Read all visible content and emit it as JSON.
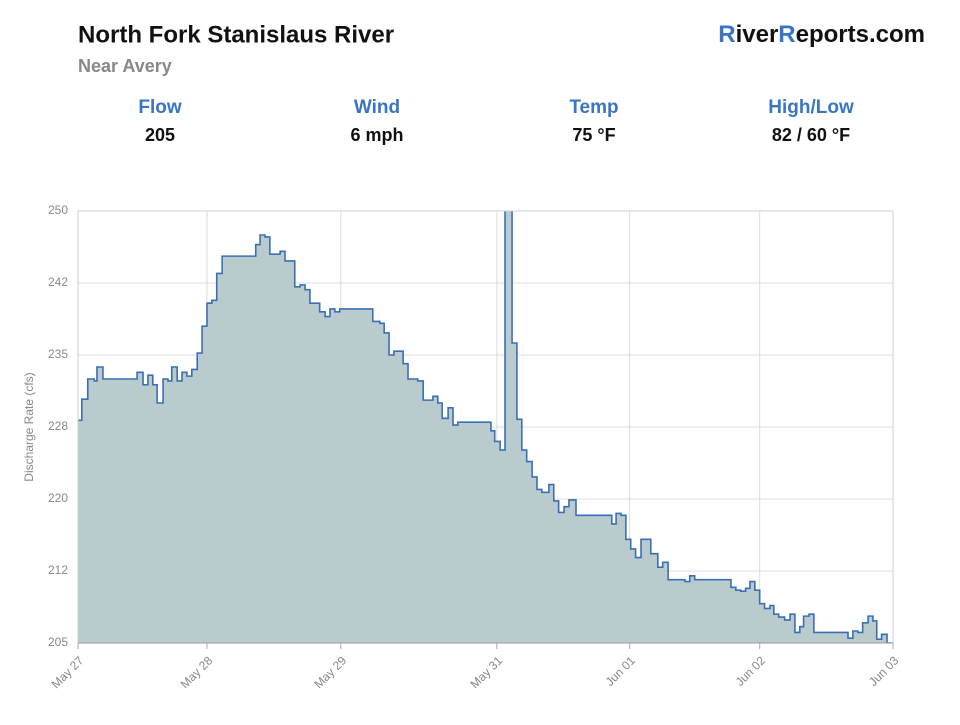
{
  "header": {
    "title": "North Fork Stanislaus River",
    "subtitle": "Near Avery",
    "brand": [
      {
        "text": "R",
        "color": "#3a74c4"
      },
      {
        "text": "iver"
      },
      {
        "text": "R",
        "color": "#3a74c4"
      },
      {
        "text": "eports.com"
      }
    ]
  },
  "stats": [
    {
      "label": "Flow",
      "value": "205"
    },
    {
      "label": "Wind",
      "value": "6 mph"
    },
    {
      "label": "Temp",
      "value": "75 °F"
    },
    {
      "label": "High/Low",
      "value": "82 / 60 °F"
    }
  ],
  "chart_data": {
    "type": "step-area",
    "y_label": "Discharge Rate (cfs)",
    "xlim": [
      0,
      150.4
    ],
    "xticks": [
      {
        "value": 0,
        "label": "May 27"
      },
      {
        "value": 23.8,
        "label": "May 28"
      },
      {
        "value": 48.5,
        "label": "May 29"
      },
      {
        "value": 77.3,
        "label": "May 31"
      },
      {
        "value": 101.8,
        "label": "Jun 01"
      },
      {
        "value": 125.8,
        "label": "Jun 02"
      },
      {
        "value": 150.4,
        "label": "Jun 03"
      }
    ],
    "ylim": [
      205,
      250
    ],
    "yticks": [
      205,
      {
        "value": 212.5,
        "label": "212"
      },
      220,
      {
        "value": 227.5,
        "label": "228"
      },
      235,
      {
        "value": 242.5,
        "label": "242"
      },
      250
    ],
    "grid": true,
    "line_color": "#3a6fb5",
    "fill_color": "#b9cbcc",
    "x": [
      0,
      0.7,
      1.8,
      3.0,
      3.5,
      4.6,
      10.9,
      12.0,
      12.9,
      13.8,
      14.6,
      15.7,
      16.6,
      17.3,
      18.3,
      19.2,
      20.1,
      21.0,
      22.0,
      22.9,
      23.8,
      24.7,
      25.6,
      26.6,
      32.8,
      33.6,
      34.5,
      35.4,
      37.3,
      38.2,
      40.0,
      41.0,
      41.9,
      42.8,
      44.6,
      45.6,
      46.5,
      47.4,
      48.3,
      54.4,
      55.7,
      56.5,
      57.4,
      58.3,
      60.0,
      60.9,
      62.7,
      63.7,
      65.5,
      66.4,
      67.2,
      68.3,
      69.2,
      70.1,
      76.2,
      76.9,
      77.9,
      78.8,
      80.1,
      81.0,
      81.9,
      82.8,
      83.8,
      84.7,
      85.6,
      86.9,
      87.8,
      88.7,
      89.7,
      90.6,
      91.9,
      98.5,
      99.3,
      100.2,
      101.1,
      102.0,
      102.9,
      103.9,
      105.7,
      107.0,
      107.9,
      108.9,
      112.0,
      112.9,
      113.8,
      120.5,
      121.4,
      122.3,
      123.2,
      124.0,
      124.9,
      125.8,
      126.7,
      127.7,
      128.4,
      129.3,
      130.4,
      131.4,
      132.3,
      133.2,
      133.9,
      134.9,
      135.8,
      142.1,
      143.0,
      143.9,
      144.8,
      145.8,
      146.7,
      147.4,
      148.3,
      149.3
    ],
    "values": [
      228.2,
      230.4,
      232.5,
      232.3,
      233.75,
      232.5,
      233.2,
      231.9,
      232.9,
      231.9,
      230,
      232.5,
      232.3,
      233.75,
      232.3,
      233.2,
      232.8,
      233.5,
      235.2,
      238,
      240.4,
      240.7,
      243.5,
      245.3,
      246.5,
      247.5,
      247.3,
      245.5,
      245.8,
      244.8,
      242.1,
      242.3,
      241.8,
      240.4,
      239.5,
      239,
      239.8,
      239.5,
      239.8,
      238.5,
      238.3,
      237.3,
      235,
      235.4,
      234.1,
      232.5,
      232.3,
      230.3,
      230.7,
      230,
      228.4,
      229.5,
      227.7,
      228,
      227.1,
      226,
      225.1,
      251,
      236.25,
      228.3,
      225.1,
      223.9,
      222.3,
      221,
      220.7,
      221.5,
      219.8,
      218.6,
      219.2,
      219.9,
      218.3,
      217.4,
      218.5,
      218.3,
      215.8,
      214.8,
      213.9,
      215.8,
      214.3,
      212.9,
      213.4,
      211.6,
      211.4,
      212,
      211.6,
      210.8,
      210.5,
      210.4,
      210.7,
      211.4,
      210.5,
      209.1,
      208.6,
      208.9,
      208,
      207.7,
      207.4,
      208,
      206.1,
      206.7,
      207.8,
      208,
      206.1,
      205.5,
      206.25,
      206.1,
      207.1,
      207.8,
      207.3,
      205.4,
      205.9,
      205
    ]
  }
}
